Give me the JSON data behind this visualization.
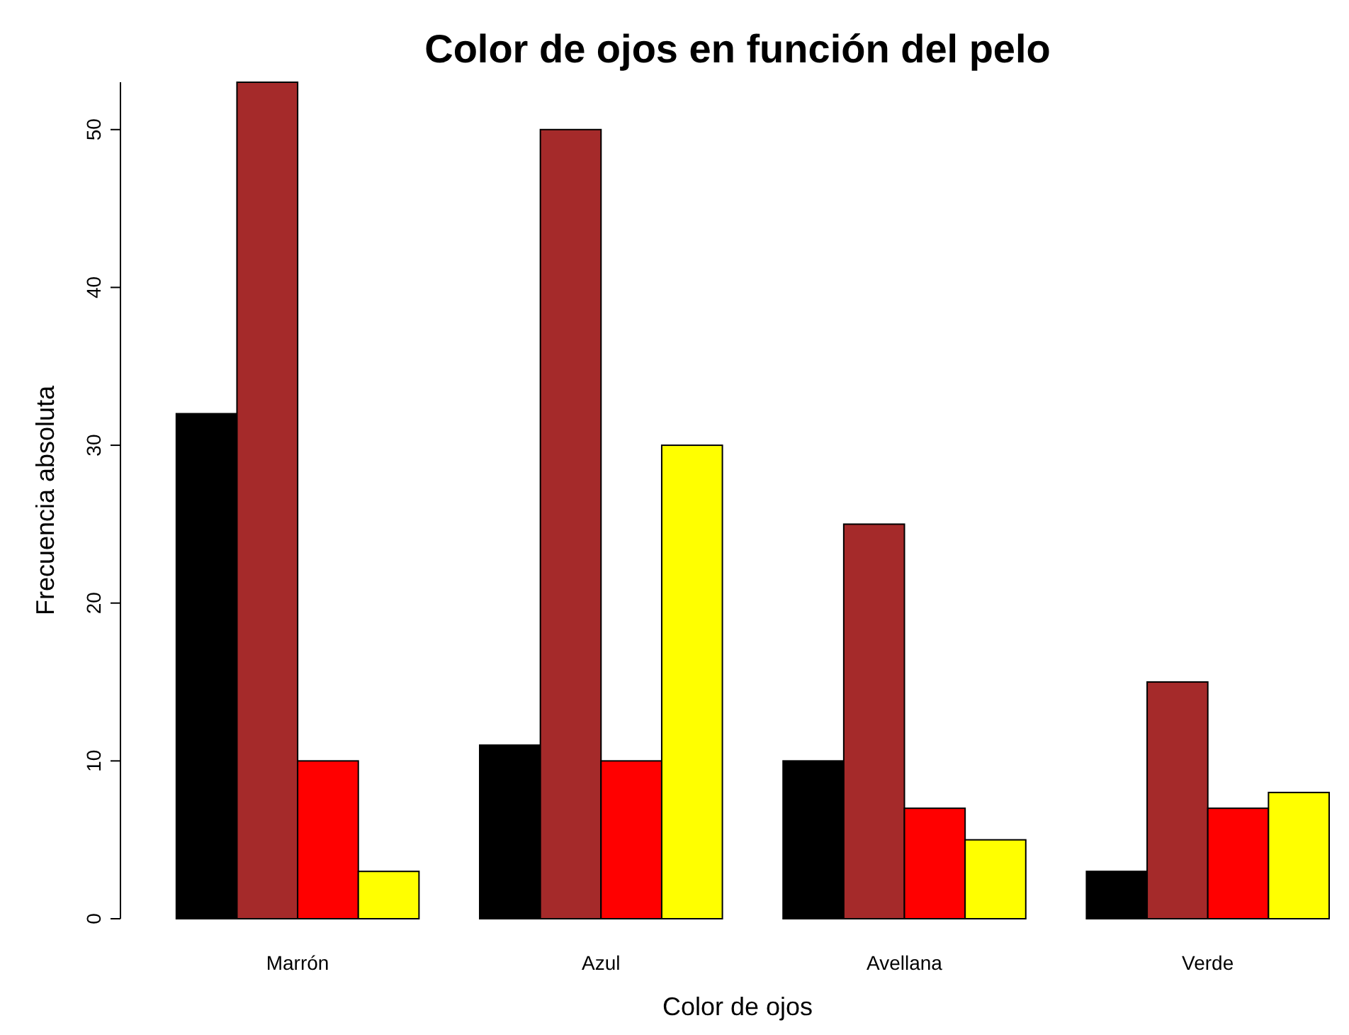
{
  "chart_data": {
    "type": "bar",
    "title": "Color de ojos en función del pelo",
    "xlabel": "Color de ojos",
    "ylabel": "Frecuencia absoluta",
    "categories": [
      "Marrón",
      "Azul",
      "Avellana",
      "Verde"
    ],
    "series": [
      {
        "color": "#000000",
        "values": [
          32,
          11,
          10,
          3
        ]
      },
      {
        "color": "#a52a2a",
        "values": [
          53,
          50,
          25,
          15
        ]
      },
      {
        "color": "#ff0000",
        "values": [
          10,
          10,
          7,
          7
        ]
      },
      {
        "color": "#ffff00",
        "values": [
          3,
          30,
          5,
          8
        ]
      }
    ],
    "ylim": [
      0,
      53
    ],
    "yticks": [
      0,
      10,
      20,
      30,
      40,
      50
    ],
    "grid": false
  }
}
